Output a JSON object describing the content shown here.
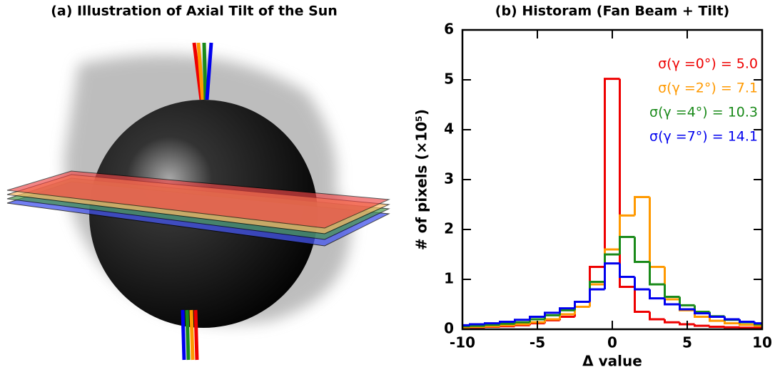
{
  "illustration": {
    "title": "(a) Illustration of Axial Tilt of the Sun"
  },
  "chart_data": {
    "type": "histogram",
    "title": "(b) Historam (Fan Beam + Tilt)",
    "xlabel": "Δ value",
    "ylabel": "# of pixels (×10⁵)",
    "bins": [
      -10.5,
      -9.5,
      -8.5,
      -7.5,
      -6.5,
      -5.5,
      -4.5,
      -3.5,
      -2.5,
      -1.5,
      -0.5,
      0.5,
      1.5,
      2.5,
      3.5,
      4.5,
      5.5,
      6.5,
      7.5,
      8.5,
      9.5,
      10.5
    ],
    "series": [
      {
        "name": "σ(γ =0°) =  5.0",
        "color": "#ee0000",
        "values": [
          0.03,
          0.04,
          0.05,
          0.06,
          0.08,
          0.12,
          0.18,
          0.25,
          0.45,
          1.25,
          5.02,
          0.85,
          0.35,
          0.2,
          0.14,
          0.1,
          0.07,
          0.05,
          0.04,
          0.03,
          0.03
        ]
      },
      {
        "name": "σ(γ =2°) =  7.1",
        "color": "#ff9900",
        "values": [
          0.04,
          0.05,
          0.06,
          0.08,
          0.1,
          0.14,
          0.2,
          0.3,
          0.45,
          0.9,
          1.6,
          2.28,
          2.65,
          1.25,
          0.6,
          0.38,
          0.25,
          0.17,
          0.12,
          0.09,
          0.07
        ]
      },
      {
        "name": "σ(γ =4°) = 10.3",
        "color": "#1a8a1a",
        "values": [
          0.06,
          0.07,
          0.09,
          0.11,
          0.14,
          0.2,
          0.28,
          0.38,
          0.55,
          0.95,
          1.5,
          1.85,
          1.35,
          0.9,
          0.65,
          0.48,
          0.35,
          0.26,
          0.19,
          0.14,
          0.1
        ]
      },
      {
        "name": "σ(γ =7°) = 14.1",
        "color": "#0000ee",
        "values": [
          0.08,
          0.1,
          0.12,
          0.15,
          0.19,
          0.25,
          0.33,
          0.42,
          0.55,
          0.8,
          1.32,
          1.05,
          0.8,
          0.62,
          0.5,
          0.4,
          0.32,
          0.25,
          0.2,
          0.15,
          0.12
        ]
      }
    ],
    "xlim": [
      -10,
      10
    ],
    "ylim": [
      0,
      6
    ],
    "xticks": [
      -10,
      -5,
      0,
      5,
      10
    ],
    "yticks": [
      0,
      1,
      2,
      3,
      4,
      5,
      6
    ]
  }
}
